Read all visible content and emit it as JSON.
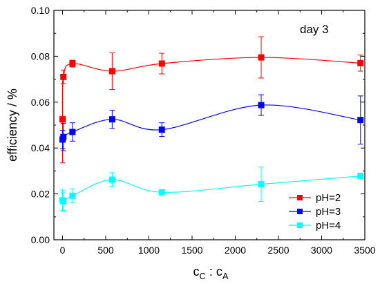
{
  "chart_data": {
    "type": "line",
    "xlabel": {
      "main": "c",
      "sub1": "C",
      "sep": " : c",
      "sub2": "A"
    },
    "ylabel": "efficiency / %",
    "annotation": "day 3",
    "xlim": [
      -100,
      3500
    ],
    "ylim": [
      0,
      0.1
    ],
    "xticks": [
      0,
      500,
      1000,
      1500,
      2000,
      2500,
      3000,
      3500
    ],
    "yticks": [
      0.0,
      0.02,
      0.04,
      0.06,
      0.08,
      0.1
    ],
    "ytick_labels": [
      "0.00",
      "0.02",
      "0.04",
      "0.06",
      "0.08",
      "0.10"
    ],
    "grid": false,
    "legend_position": "bottom-right",
    "series": [
      {
        "name": "pH=2",
        "color": "#ff0000",
        "x": [
          0,
          10,
          115,
          575,
          1150,
          2300,
          3450
        ],
        "y": [
          0.0525,
          0.071,
          0.0768,
          0.0735,
          0.0768,
          0.0795,
          0.077
        ],
        "err": [
          0.019,
          0.003,
          0.0015,
          0.008,
          0.0045,
          0.009,
          0.0035
        ]
      },
      {
        "name": "pH=3",
        "color": "#0000ff",
        "x": [
          0,
          10,
          115,
          575,
          1150,
          2300,
          3450
        ],
        "y": [
          0.0437,
          0.0448,
          0.047,
          0.0525,
          0.048,
          0.0587,
          0.0522
        ],
        "err": [
          0.004,
          0.006,
          0.004,
          0.004,
          0.003,
          0.0045,
          0.0105
        ]
      },
      {
        "name": "pH=4",
        "color": "#00ffff",
        "x": [
          0,
          10,
          115,
          575,
          1150,
          2300,
          3450
        ],
        "y": [
          0.0172,
          0.0168,
          0.0192,
          0.0262,
          0.0207,
          0.0242,
          0.0278
        ],
        "err": [
          0.0045,
          0.004,
          0.003,
          0.003,
          0.001,
          0.0075,
          0.001
        ]
      }
    ]
  }
}
